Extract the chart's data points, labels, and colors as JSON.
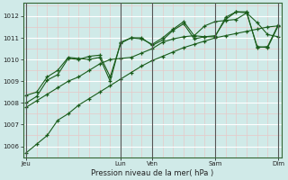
{
  "bg_color": "#d0eae8",
  "grid_major_color": "#ffffff",
  "grid_minor_color": "#e8c8c8",
  "line_color": "#1a5c1a",
  "vline_color": "#555555",
  "xlabel": "Pression niveau de la mer( hPa )",
  "ylim": [
    1005.5,
    1012.6
  ],
  "yticks": [
    1006,
    1007,
    1008,
    1009,
    1010,
    1011,
    1012
  ],
  "xtick_labels": [
    "Jeu",
    "Lun",
    "Ven",
    "Sam",
    "Dim"
  ],
  "xtick_positions": [
    0,
    9,
    12,
    18,
    24
  ],
  "vline_positions": [
    0,
    9,
    12,
    18,
    24
  ],
  "total_points": 25,
  "series": [
    [
      1005.7,
      1006.1,
      1006.5,
      1007.2,
      1007.5,
      1007.9,
      1008.2,
      1008.5,
      1008.8,
      1009.1,
      1009.4,
      1009.7,
      1009.95,
      1010.15,
      1010.35,
      1010.55,
      1010.7,
      1010.85,
      1011.0,
      1011.1,
      1011.2,
      1011.3,
      1011.4,
      1011.5,
      1011.55
    ],
    [
      1007.8,
      1008.1,
      1008.4,
      1008.7,
      1009.0,
      1009.2,
      1009.5,
      1009.8,
      1010.0,
      1010.05,
      1010.1,
      1010.3,
      1010.5,
      1010.8,
      1010.95,
      1011.05,
      1011.1,
      1011.55,
      1011.75,
      1011.8,
      1011.85,
      1012.15,
      1011.7,
      1011.15,
      1011.05
    ],
    [
      1008.0,
      1008.3,
      1009.05,
      1009.3,
      1010.05,
      1010.0,
      1010.15,
      1010.2,
      1009.2,
      1010.75,
      1011.0,
      1011.0,
      1010.65,
      1010.9,
      1011.35,
      1011.65,
      1010.95,
      1011.05,
      1011.1,
      1011.85,
      1012.2,
      1012.2,
      1010.55,
      1010.6,
      1011.6
    ],
    [
      1008.35,
      1008.5,
      1009.2,
      1009.5,
      1010.1,
      1010.05,
      1010.0,
      1010.1,
      1009.0,
      1010.8,
      1011.0,
      1010.95,
      1010.7,
      1011.0,
      1011.4,
      1011.75,
      1011.1,
      1011.05,
      1011.05,
      1011.95,
      1012.2,
      1012.15,
      1010.6,
      1010.55,
      1011.55
    ]
  ]
}
